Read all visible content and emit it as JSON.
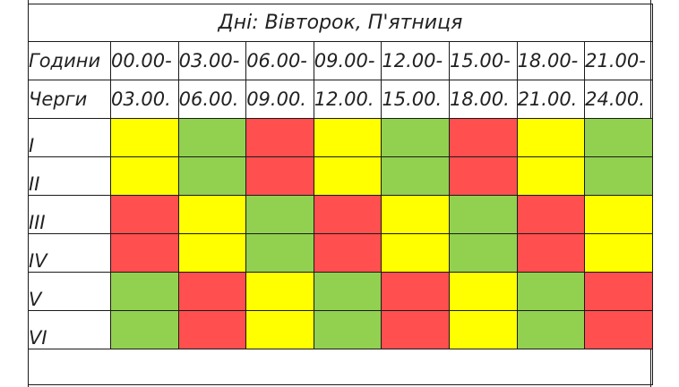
{
  "title": "Дні: Вівторок, П'ятниця",
  "header": {
    "hours_label": "Години",
    "groups_label": "Черги",
    "slot_starts": [
      "00.00-",
      "03.00-",
      "06.00-",
      "09.00-",
      "12.00-",
      "15.00-",
      "18.00-",
      "21.00-"
    ],
    "slot_ends": [
      "03.00.",
      "06.00.",
      "09.00.",
      "12.00.",
      "15.00.",
      "18.00.",
      "21.00.",
      "24.00."
    ]
  },
  "colors": {
    "yellow": "#ffff00",
    "green": "#92d050",
    "red": "#ff4f4f"
  },
  "groups": [
    {
      "label": "I",
      "cells": [
        "yellow",
        "green",
        "red",
        "yellow",
        "green",
        "red",
        "yellow",
        "green"
      ]
    },
    {
      "label": "II",
      "cells": [
        "yellow",
        "green",
        "red",
        "yellow",
        "green",
        "red",
        "yellow",
        "green"
      ]
    },
    {
      "label": "III",
      "cells": [
        "red",
        "yellow",
        "green",
        "red",
        "yellow",
        "green",
        "red",
        "yellow"
      ]
    },
    {
      "label": "IV",
      "cells": [
        "red",
        "yellow",
        "green",
        "red",
        "yellow",
        "green",
        "red",
        "yellow"
      ]
    },
    {
      "label": "V",
      "cells": [
        "green",
        "red",
        "yellow",
        "green",
        "red",
        "yellow",
        "green",
        "red"
      ]
    },
    {
      "label": "VI",
      "cells": [
        "green",
        "red",
        "yellow",
        "green",
        "red",
        "yellow",
        "green",
        "red"
      ]
    }
  ]
}
